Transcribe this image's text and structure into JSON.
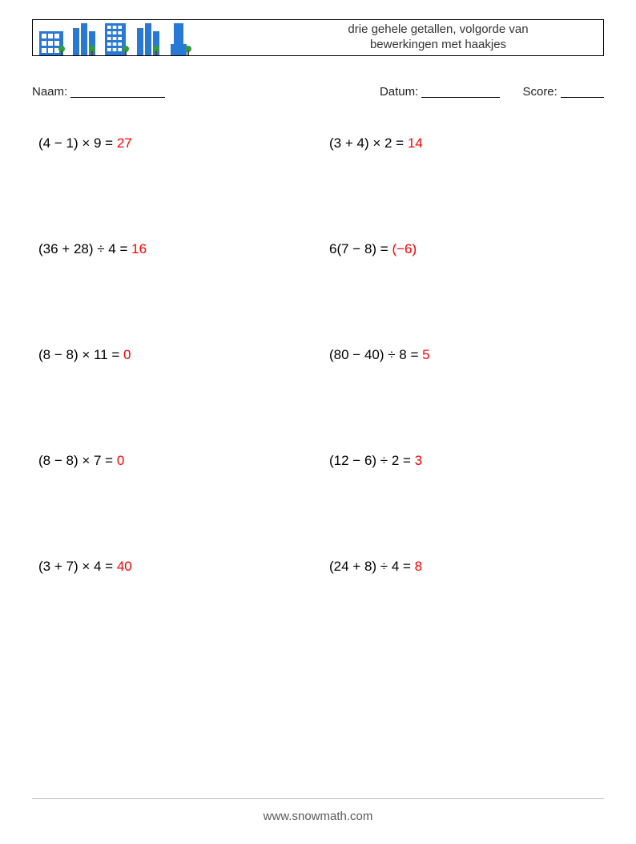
{
  "header": {
    "title_line1": "drie gehele getallen, volgorde van",
    "title_line2": "bewerkingen met haakjes"
  },
  "labels": {
    "name": "Naam:",
    "date": "Datum:",
    "score": "Score:"
  },
  "buildings": [
    {
      "fill": "#2879d6",
      "accent": "#ffffff",
      "width": 34,
      "height": 38,
      "type": "block"
    },
    {
      "fill": "#2879d6",
      "accent": "#ffffff",
      "width": 30,
      "height": 40,
      "type": "towers"
    },
    {
      "fill": "#2879d6",
      "accent": "#ffffff",
      "width": 34,
      "height": 40,
      "type": "tall"
    },
    {
      "fill": "#2879d6",
      "accent": "#ffffff",
      "width": 30,
      "height": 40,
      "type": "towers"
    },
    {
      "fill": "#2879d6",
      "accent": "#ffffff",
      "width": 32,
      "height": 40,
      "type": "slim"
    }
  ],
  "tree_color": "#2e9e3a",
  "problems": [
    {
      "expr": "(4 − 1) × 9 = ",
      "ans": "27"
    },
    {
      "expr": "(3 + 4) × 2 = ",
      "ans": "14"
    },
    {
      "expr": "(36 + 28) ÷ 4 = ",
      "ans": "16"
    },
    {
      "expr": "6(7 − 8) = ",
      "ans": "(−6)"
    },
    {
      "expr": "(8 − 8) × 11 = ",
      "ans": "0"
    },
    {
      "expr": "(80 − 40) ÷ 8 = ",
      "ans": "5"
    },
    {
      "expr": "(8 − 8) × 7 = ",
      "ans": "0"
    },
    {
      "expr": "(12 − 6) ÷ 2 = ",
      "ans": "3"
    },
    {
      "expr": "(3 + 7) × 4 = ",
      "ans": "40"
    },
    {
      "expr": "(24 + 8) ÷ 4 = ",
      "ans": "8"
    }
  ],
  "footer": "www.snowmath.com"
}
